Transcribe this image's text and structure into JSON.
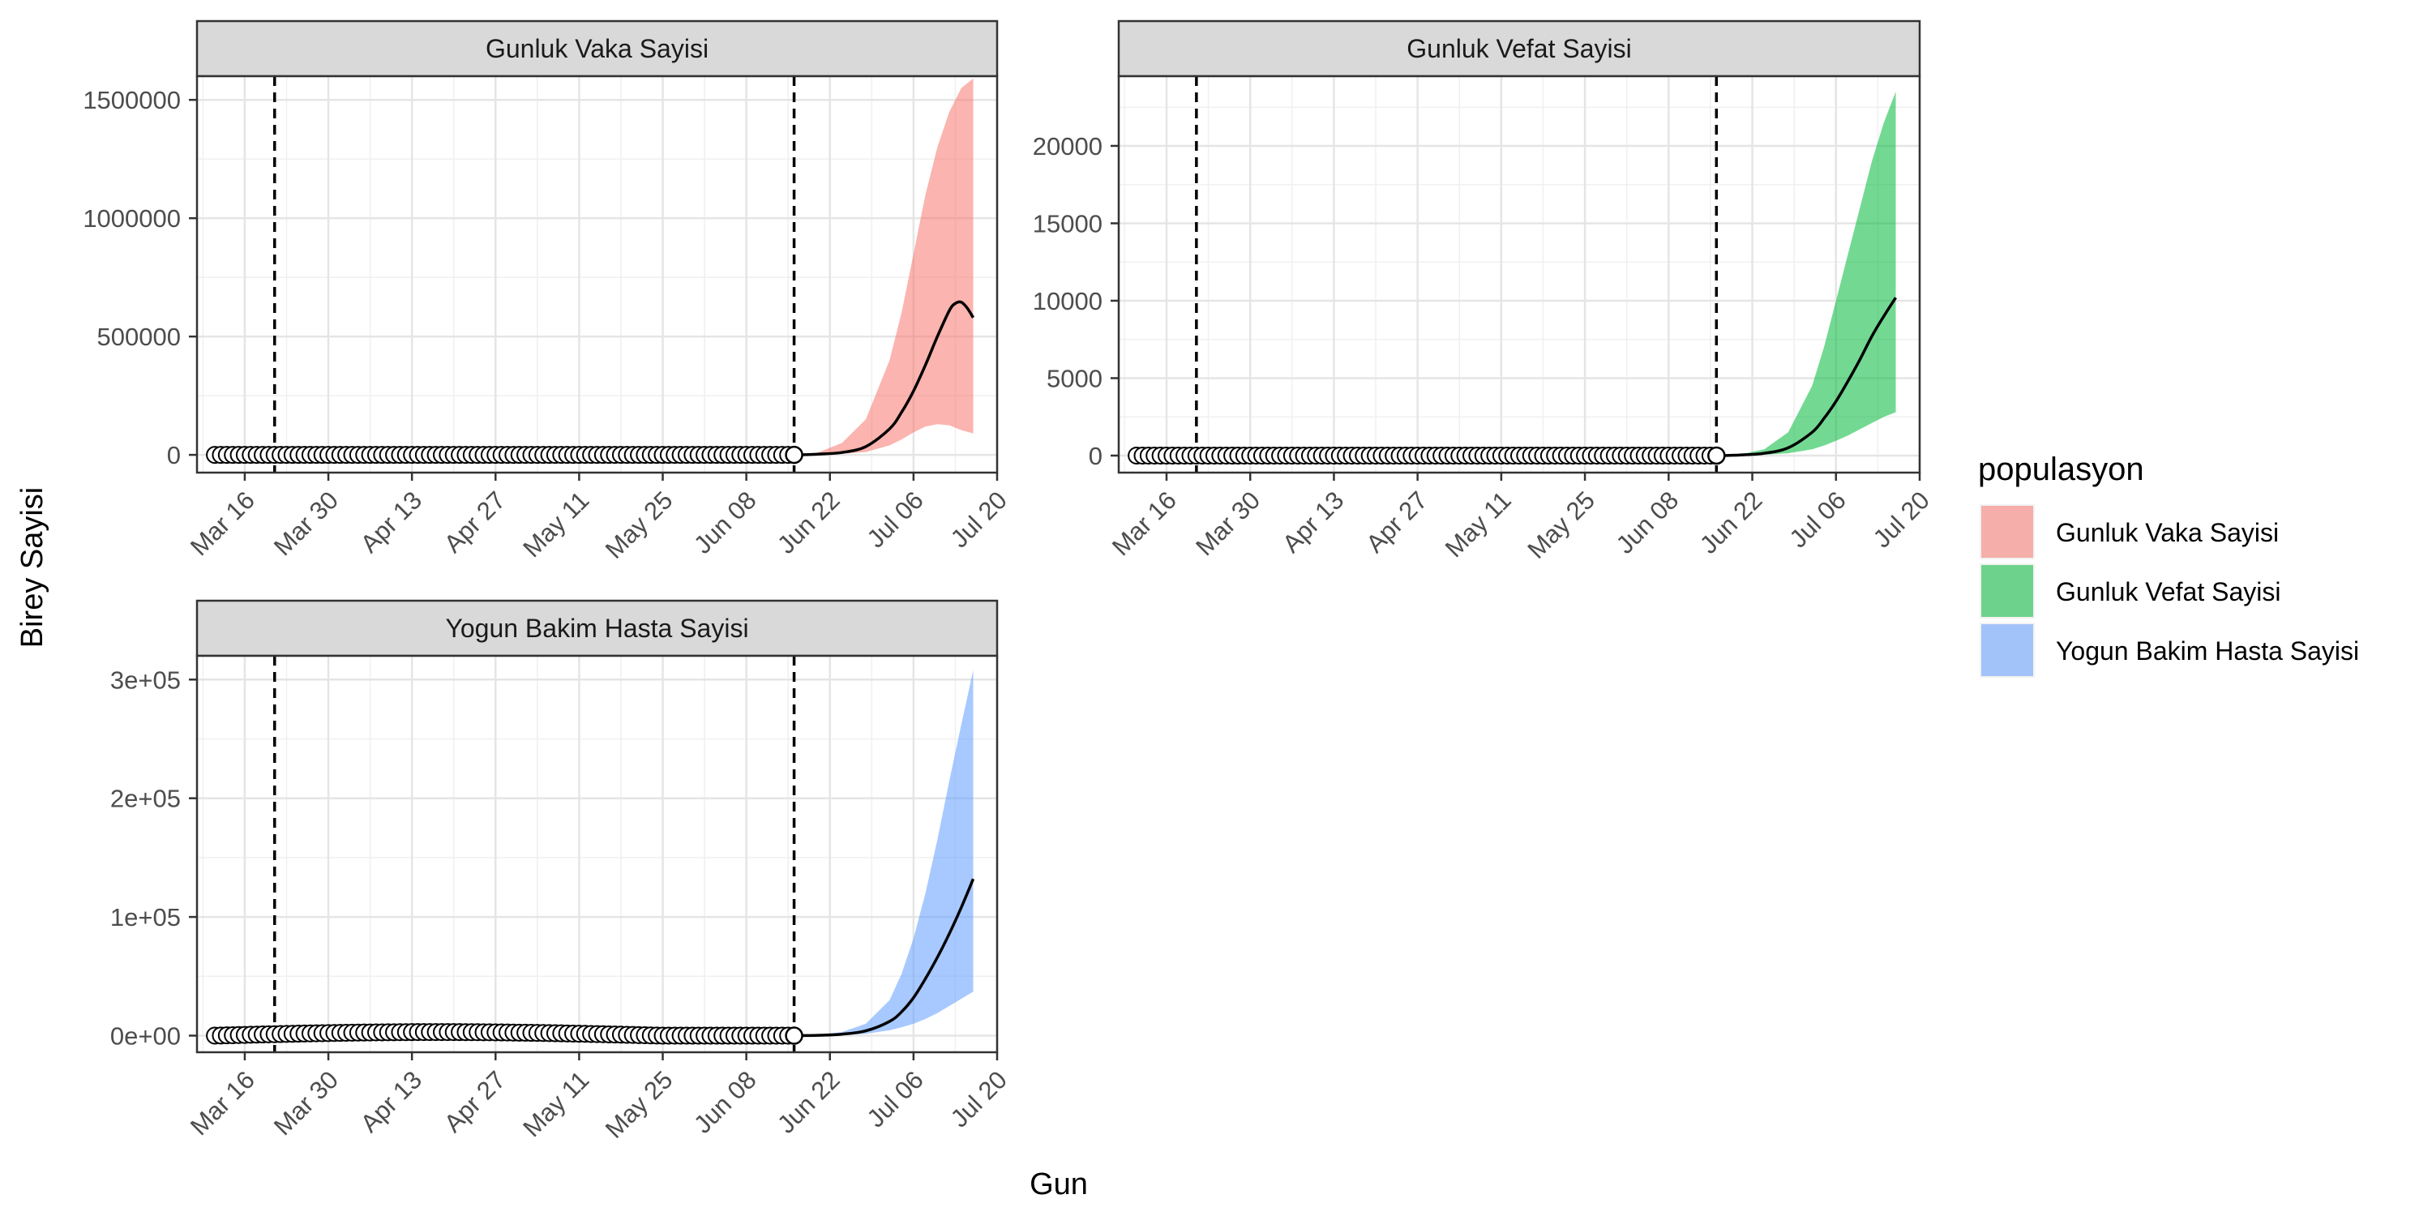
{
  "figure": {
    "ylabel": "Birey Sayisi",
    "xlabel": "Gun",
    "legend_title": "populasyon",
    "legend_placement": "right",
    "legend_items": [
      {
        "label": "Gunluk Vaka Sayisi",
        "color": "#F8766D"
      },
      {
        "label": "Gunluk Vefat Sayisi",
        "color": "#00BA38"
      },
      {
        "label": "Yogun Bakim Hasta Sayisi",
        "color": "#619CFF"
      }
    ],
    "x_tick_labels": [
      "Mar 16",
      "Mar 30",
      "Apr 13",
      "Apr 27",
      "May 11",
      "May 25",
      "Jun 08",
      "Jun 22",
      "Jul 06",
      "Jul 20"
    ],
    "vlines": [
      "2020-03-21",
      "2020-06-16"
    ],
    "observed_points": {
      "start": "2020-03-11",
      "end": "2020-06-16",
      "marker": "open-circle"
    },
    "forecast": {
      "start": "2020-06-16",
      "end": "2020-07-16"
    }
  },
  "chart_data": [
    {
      "type": "area",
      "title": "Gunluk Vaka Sayisi",
      "fill": "#F8766D",
      "y_tick_labels": [
        "0",
        "500000",
        "1000000",
        "1500000"
      ],
      "y_ticks": [
        0,
        500000,
        1000000,
        1500000
      ],
      "ylim": [
        -75000,
        1600000
      ],
      "xlim": [
        "2020-03-08",
        "2020-07-20"
      ],
      "median": {
        "x": [
          "2020-06-16",
          "2020-06-20",
          "2020-06-24",
          "2020-06-28",
          "2020-07-02",
          "2020-07-04",
          "2020-07-06",
          "2020-07-08",
          "2020-07-10",
          "2020-07-12",
          "2020-07-13",
          "2020-07-14",
          "2020-07-15",
          "2020-07-16"
        ],
        "y": [
          0,
          3000,
          10000,
          35000,
          110000,
          180000,
          270000,
          380000,
          500000,
          610000,
          640000,
          645000,
          620000,
          580000
        ]
      },
      "band_upper": {
        "x": [
          "2020-06-16",
          "2020-06-20",
          "2020-06-24",
          "2020-06-28",
          "2020-07-02",
          "2020-07-04",
          "2020-07-06",
          "2020-07-08",
          "2020-07-10",
          "2020-07-12",
          "2020-07-14",
          "2020-07-16"
        ],
        "y": [
          0,
          10000,
          50000,
          150000,
          400000,
          600000,
          850000,
          1100000,
          1300000,
          1450000,
          1550000,
          1590000
        ]
      },
      "band_lower": {
        "x": [
          "2020-06-16",
          "2020-06-20",
          "2020-06-24",
          "2020-06-28",
          "2020-07-02",
          "2020-07-04",
          "2020-07-06",
          "2020-07-08",
          "2020-07-10",
          "2020-07-12",
          "2020-07-14",
          "2020-07-16"
        ],
        "y": [
          0,
          1000,
          4000,
          12000,
          40000,
          65000,
          95000,
          120000,
          130000,
          125000,
          105000,
          90000
        ]
      },
      "observed_values_approx": 0
    },
    {
      "type": "area",
      "title": "Gunluk Vefat Sayisi",
      "fill": "#00BA38",
      "y_tick_labels": [
        "0",
        "5000",
        "10000",
        "15000",
        "20000"
      ],
      "y_ticks": [
        0,
        5000,
        10000,
        15000,
        20000
      ],
      "ylim": [
        -1100,
        24500
      ],
      "xlim": [
        "2020-03-08",
        "2020-07-20"
      ],
      "median": {
        "x": [
          "2020-06-16",
          "2020-06-20",
          "2020-06-24",
          "2020-06-28",
          "2020-07-02",
          "2020-07-04",
          "2020-07-06",
          "2020-07-08",
          "2020-07-10",
          "2020-07-12",
          "2020-07-14",
          "2020-07-16"
        ],
        "y": [
          0,
          40,
          150,
          500,
          1500,
          2400,
          3500,
          4800,
          6200,
          7700,
          9000,
          10200
        ]
      },
      "band_upper": {
        "x": [
          "2020-06-16",
          "2020-06-20",
          "2020-06-24",
          "2020-06-28",
          "2020-07-02",
          "2020-07-04",
          "2020-07-06",
          "2020-07-08",
          "2020-07-10",
          "2020-07-12",
          "2020-07-14",
          "2020-07-16"
        ],
        "y": [
          0,
          80,
          400,
          1500,
          4500,
          7000,
          10000,
          13000,
          16000,
          19000,
          21500,
          23500
        ]
      },
      "band_lower": {
        "x": [
          "2020-06-16",
          "2020-06-20",
          "2020-06-24",
          "2020-06-28",
          "2020-07-02",
          "2020-07-04",
          "2020-07-06",
          "2020-07-08",
          "2020-07-10",
          "2020-07-12",
          "2020-07-14",
          "2020-07-16"
        ],
        "y": [
          0,
          15,
          50,
          150,
          400,
          650,
          950,
          1300,
          1700,
          2100,
          2500,
          2800
        ]
      },
      "observed_values_approx": 0
    },
    {
      "type": "area",
      "title": "Yogun Bakim Hasta Sayisi",
      "fill": "#619CFF",
      "y_tick_labels": [
        "0e+00",
        "1e+05",
        "2e+05",
        "3e+05"
      ],
      "y_ticks": [
        0,
        100000,
        200000,
        300000
      ],
      "ylim": [
        -14000,
        320000
      ],
      "xlim": [
        "2020-03-08",
        "2020-07-20"
      ],
      "median": {
        "x": [
          "2020-06-16",
          "2020-06-20",
          "2020-06-24",
          "2020-06-28",
          "2020-07-02",
          "2020-07-04",
          "2020-07-06",
          "2020-07-08",
          "2020-07-10",
          "2020-07-12",
          "2020-07-14",
          "2020-07-16"
        ],
        "y": [
          0,
          300,
          1200,
          4000,
          12000,
          20000,
          32000,
          48000,
          66000,
          86000,
          108000,
          132000
        ]
      },
      "band_upper": {
        "x": [
          "2020-06-16",
          "2020-06-20",
          "2020-06-24",
          "2020-06-28",
          "2020-07-02",
          "2020-07-04",
          "2020-07-06",
          "2020-07-08",
          "2020-07-10",
          "2020-07-12",
          "2020-07-14",
          "2020-07-16"
        ],
        "y": [
          0,
          600,
          3000,
          10000,
          30000,
          52000,
          82000,
          120000,
          165000,
          215000,
          262000,
          308000
        ]
      },
      "band_lower": {
        "x": [
          "2020-06-16",
          "2020-06-20",
          "2020-06-24",
          "2020-06-28",
          "2020-07-02",
          "2020-07-04",
          "2020-07-06",
          "2020-07-08",
          "2020-07-10",
          "2020-07-12",
          "2020-07-14",
          "2020-07-16"
        ],
        "y": [
          0,
          100,
          400,
          1500,
          4500,
          7000,
          10000,
          14000,
          19000,
          25000,
          31000,
          37000
        ]
      },
      "observed_values_approx": 3000
    }
  ]
}
